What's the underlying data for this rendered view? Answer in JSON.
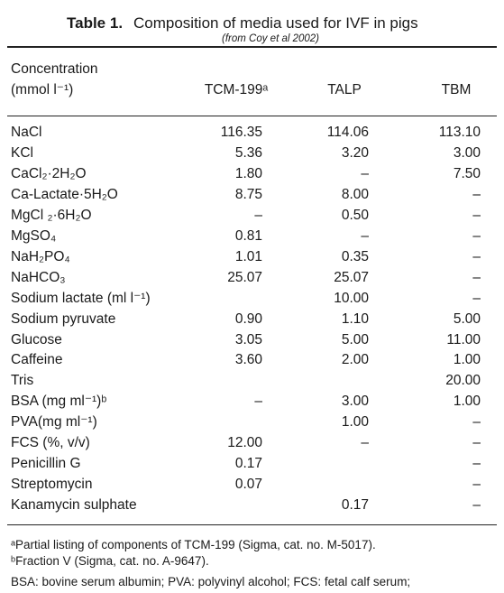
{
  "header": {
    "label": "Table 1.",
    "title": "Composition of media used for IVF in pigs",
    "source": "(from Coy et al 2002)"
  },
  "table": {
    "columns": [
      [
        "Concentration",
        "(mmol l⁻¹)"
      ],
      "TCM-199ᵃ",
      "TALP",
      "TBM"
    ],
    "rows": [
      [
        "NaCl",
        "116.35",
        "114.06",
        "113.10"
      ],
      [
        "KCl",
        "5.36",
        "3.20",
        "3.00"
      ],
      [
        "CaCl₂·2H₂O",
        "1.80",
        "–",
        "7.50"
      ],
      [
        "Ca-Lactate·5H₂O",
        "8.75",
        "8.00",
        "–"
      ],
      [
        "MgCl ₂·6H₂O",
        "–",
        "0.50",
        "–"
      ],
      [
        "MgSO₄",
        "0.81",
        "–",
        "–"
      ],
      [
        "NaH₂PO₄",
        "1.01",
        "0.35",
        "–"
      ],
      [
        "NaHCO₃",
        "25.07",
        "25.07",
        "–"
      ],
      [
        "Sodium lactate (ml l⁻¹)",
        null,
        "10.00",
        "–"
      ],
      [
        "Sodium pyruvate",
        "0.90",
        "1.10",
        "5.00"
      ],
      [
        "Glucose",
        "3.05",
        "5.00",
        "11.00"
      ],
      [
        "Caffeine",
        "3.60",
        "2.00",
        "1.00"
      ],
      [
        "Tris",
        null,
        null,
        "20.00"
      ],
      [
        "BSA (mg ml⁻¹)ᵇ",
        "–",
        "3.00",
        "1.00"
      ],
      [
        "PVA(mg ml⁻¹)",
        null,
        "1.00",
        "–"
      ],
      [
        "FCS (%, v/v)",
        "12.00",
        "–",
        "–"
      ],
      [
        "Penicillin G",
        "0.17",
        null,
        "–"
      ],
      [
        "Streptomycin",
        "0.07",
        null,
        "–"
      ],
      [
        "Kanamycin sulphate",
        null,
        "0.17",
        "–"
      ]
    ]
  },
  "footnotes": [
    "ᵃPartial listing of components of TCM-199 (Sigma, cat. no. M-5017).",
    "ᵇFraction V (Sigma, cat. no. A-9647).",
    "BSA: bovine serum albumin; PVA: polyvinyl alcohol; FCS: fetal calf serum;"
  ]
}
